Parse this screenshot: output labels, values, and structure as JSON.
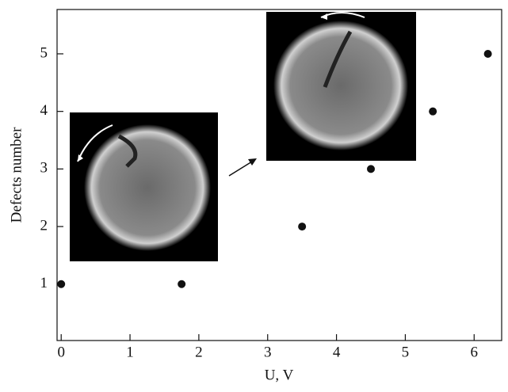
{
  "chart_data": {
    "type": "scatter",
    "xlabel": "U, V",
    "ylabel": "Defects number",
    "x": [
      0,
      1.75,
      3.5,
      4.5,
      5.4,
      6.2
    ],
    "values": [
      1,
      1,
      2,
      3,
      4,
      5
    ],
    "color": "#111111",
    "xlim": [
      -0.06,
      6.4
    ],
    "ylim": [
      0.02,
      5.77
    ],
    "xticks": [
      0,
      1,
      2,
      3,
      4,
      5,
      6
    ],
    "yticks": [
      1,
      2,
      3,
      4,
      5
    ]
  }
}
